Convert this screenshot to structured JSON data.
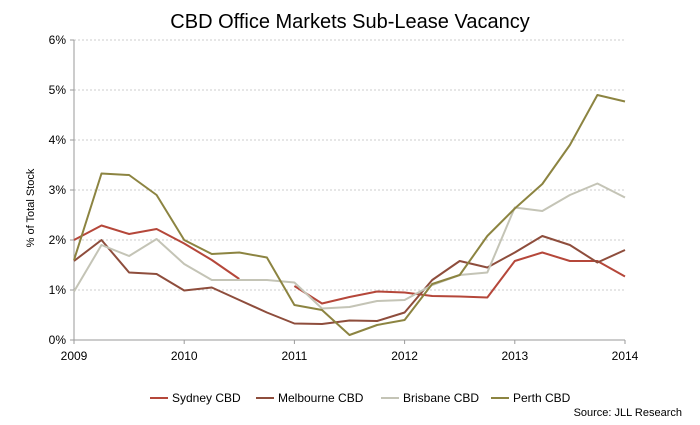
{
  "chart_data": {
    "type": "line",
    "title": "CBD Office Markets Sub-Lease Vacancy",
    "xlabel": "",
    "ylabel": "% of Total Stock",
    "x": [
      2009.0,
      2009.25,
      2009.5,
      2009.75,
      2010.0,
      2010.25,
      2010.5,
      2010.75,
      2011.0,
      2011.25,
      2011.5,
      2011.75,
      2012.0,
      2012.25,
      2012.5,
      2012.75,
      2013.0,
      2013.25,
      2013.5,
      2013.75,
      2014.0
    ],
    "xlim": [
      2009,
      2014
    ],
    "xticks": [
      2009,
      2010,
      2011,
      2012,
      2013,
      2014
    ],
    "xtick_labels": [
      "2009",
      "2010",
      "2011",
      "2012",
      "2013",
      "2014"
    ],
    "ylim": [
      0,
      6
    ],
    "yticks": [
      0,
      1,
      2,
      3,
      4,
      5,
      6
    ],
    "ytick_labels": [
      "0%",
      "1%",
      "2%",
      "3%",
      "4%",
      "5%",
      "6%"
    ],
    "grid": "horizontal dashed",
    "legend_position": "bottom",
    "series": [
      {
        "name": "Sydney CBD",
        "color": "#b5473a",
        "values": [
          2.0,
          2.29,
          2.12,
          2.22,
          1.93,
          1.6,
          1.22,
          null,
          1.08,
          0.73,
          0.86,
          0.97,
          0.95,
          0.88,
          0.87,
          0.85,
          1.58,
          1.75,
          1.58,
          1.58,
          1.27
        ]
      },
      {
        "name": "Melbourne CBD",
        "color": "#8e4d3c",
        "values": [
          1.58,
          2.0,
          1.35,
          1.32,
          0.99,
          1.05,
          0.8,
          0.55,
          0.33,
          0.32,
          0.39,
          0.38,
          0.55,
          1.2,
          1.58,
          1.45,
          1.75,
          2.08,
          1.9,
          1.55,
          1.8
        ]
      },
      {
        "name": "Brisbane CBD",
        "color": "#c4c4b6",
        "values": [
          0.97,
          1.9,
          1.68,
          2.02,
          1.52,
          1.2,
          1.2,
          1.2,
          1.15,
          0.63,
          0.66,
          0.78,
          0.8,
          1.1,
          1.3,
          1.35,
          2.65,
          2.58,
          2.9,
          3.13,
          2.85
        ]
      },
      {
        "name": "Perth CBD",
        "color": "#8c8441",
        "values": [
          1.6,
          3.33,
          3.3,
          2.9,
          2.0,
          1.72,
          1.75,
          1.65,
          0.7,
          0.6,
          0.1,
          0.3,
          0.4,
          1.12,
          1.3,
          2.08,
          2.63,
          3.12,
          3.9,
          4.9,
          4.77
        ]
      }
    ],
    "source": "Source:  JLL Research"
  }
}
